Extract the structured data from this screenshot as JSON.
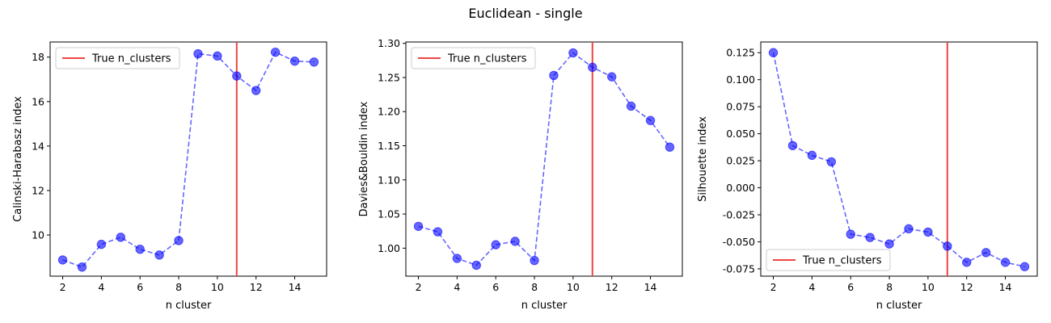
{
  "figure": {
    "title": "Euclidean - single"
  },
  "chart_data": [
    {
      "type": "line",
      "xlabel": "n cluster",
      "ylabel": "Calinski-Harabasz index",
      "xlim": [
        1.35,
        15.65
      ],
      "ylim": [
        8.15,
        18.68
      ],
      "xticks": [
        2,
        4,
        6,
        8,
        10,
        12,
        14
      ],
      "yticks": [
        10,
        12,
        14,
        16,
        18
      ],
      "x": [
        2,
        3,
        4,
        5,
        6,
        7,
        8,
        9,
        10,
        11,
        12,
        13,
        14,
        15
      ],
      "series": [
        {
          "values": [
            8.88,
            8.56,
            9.58,
            9.9,
            9.36,
            9.1,
            9.75,
            18.15,
            18.05,
            17.15,
            16.5,
            18.22,
            17.82,
            17.78
          ],
          "color": "#0000ff"
        }
      ],
      "vline": {
        "x": 11,
        "label": "True n_clusters",
        "color": "#ee4444"
      },
      "legend": {
        "position": "upper-left",
        "entries": [
          "True n_clusters"
        ]
      },
      "grid": false
    },
    {
      "type": "line",
      "xlabel": "n cluster",
      "ylabel": "Davies&Bouldin index",
      "xlim": [
        1.35,
        15.65
      ],
      "ylim": [
        0.959,
        1.302
      ],
      "xticks": [
        2,
        4,
        6,
        8,
        10,
        12,
        14
      ],
      "yticks": [
        1.0,
        1.05,
        1.1,
        1.15,
        1.2,
        1.25,
        1.3
      ],
      "ytick_decimals": 2,
      "x": [
        2,
        3,
        4,
        5,
        6,
        7,
        8,
        9,
        10,
        11,
        12,
        13,
        14,
        15
      ],
      "series": [
        {
          "values": [
            1.032,
            1.024,
            0.985,
            0.975,
            1.005,
            1.01,
            0.982,
            1.253,
            1.286,
            1.265,
            1.251,
            1.208,
            1.187,
            1.148
          ],
          "color": "#0000ff"
        }
      ],
      "vline": {
        "x": 11,
        "label": "True n_clusters",
        "color": "#ee4444"
      },
      "legend": {
        "position": "upper-left",
        "entries": [
          "True n_clusters"
        ]
      },
      "grid": false
    },
    {
      "type": "line",
      "xlabel": "n cluster",
      "ylabel": "Silhouette index",
      "xlim": [
        1.35,
        15.65
      ],
      "ylim": [
        -0.0818,
        0.1349
      ],
      "xticks": [
        2,
        4,
        6,
        8,
        10,
        12,
        14
      ],
      "yticks": [
        -0.075,
        -0.05,
        -0.025,
        0.0,
        0.025,
        0.05,
        0.075,
        0.1,
        0.125
      ],
      "ytick_decimals": 3,
      "x": [
        2,
        3,
        4,
        5,
        6,
        7,
        8,
        9,
        10,
        11,
        12,
        13,
        14,
        15
      ],
      "series": [
        {
          "values": [
            0.125,
            0.039,
            0.03,
            0.024,
            -0.043,
            -0.046,
            -0.052,
            -0.038,
            -0.041,
            -0.054,
            -0.069,
            -0.06,
            -0.069,
            -0.073
          ],
          "color": "#0000ff"
        }
      ],
      "vline": {
        "x": 11,
        "label": "True n_clusters",
        "color": "#ee4444"
      },
      "legend": {
        "position": "lower-left",
        "entries": [
          "True n_clusters"
        ]
      },
      "grid": false
    }
  ]
}
